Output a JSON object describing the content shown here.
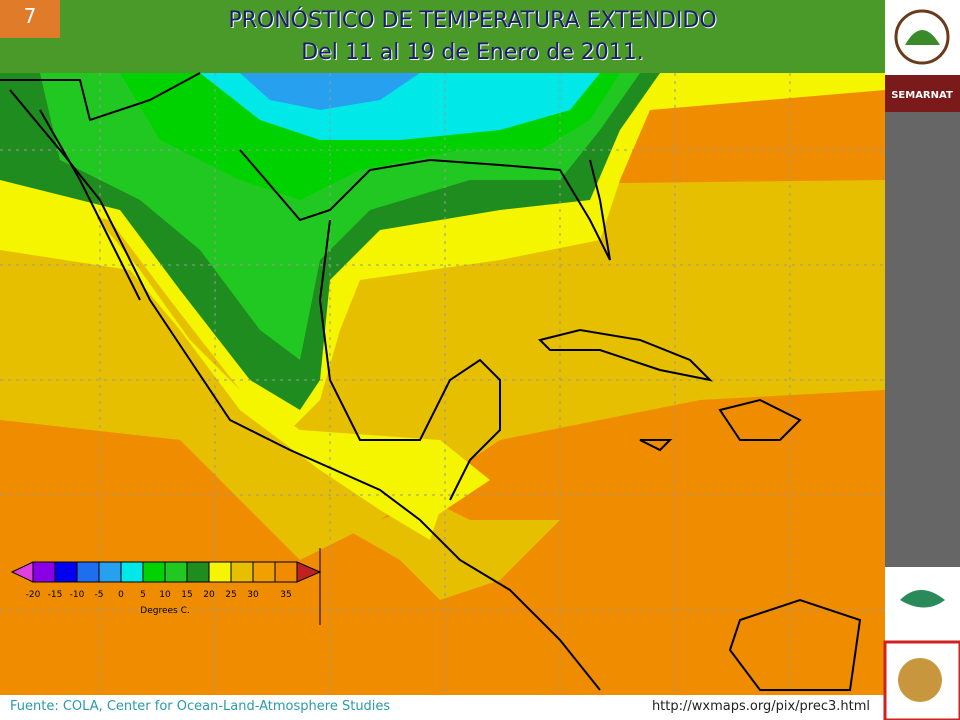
{
  "slide_number": "7",
  "header": {
    "title": "PRONÓSTICO DE TEMPERATURA EXTENDIDO",
    "subtitle": "Del 11 al 19 de Enero de 2011."
  },
  "sidebar": {
    "agency": "SEMARNAT"
  },
  "legend": {
    "labels": [
      "-20",
      "-15",
      "-10",
      "-5",
      "0",
      "5",
      "10",
      "15",
      "20",
      "25",
      "30",
      "35"
    ],
    "unit": "Degrees C."
  },
  "footer": {
    "source": "Fuente: COLA, Center  for Ocean-Land-Atmosphere Studies",
    "url": "http://wxmaps.org/pix/prec3.html"
  }
}
